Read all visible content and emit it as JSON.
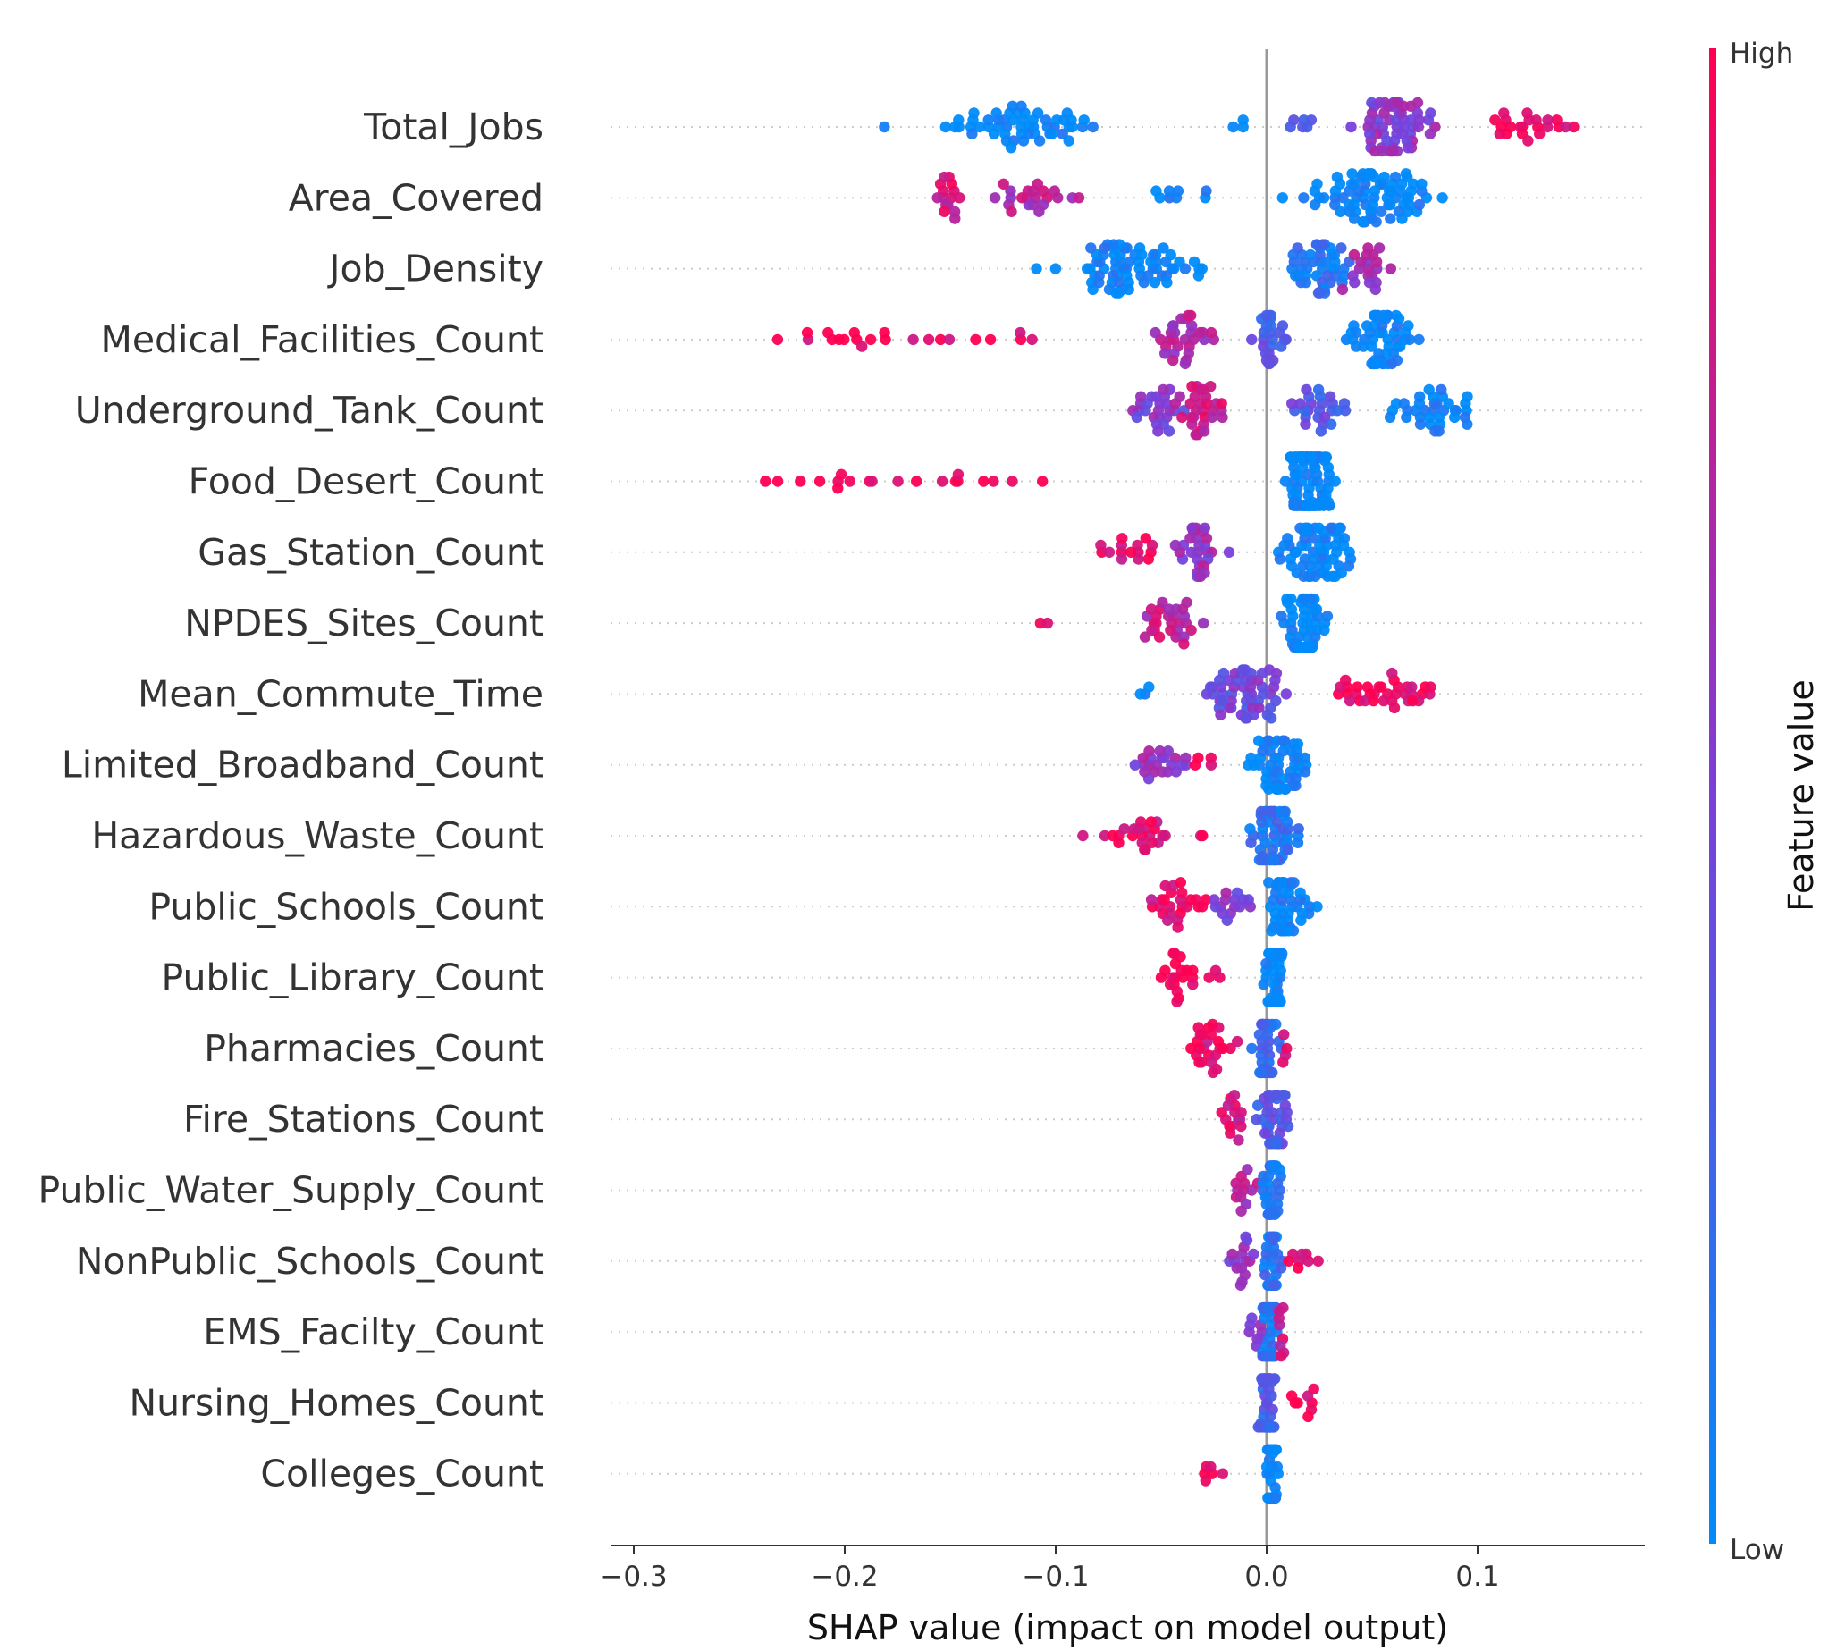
{
  "chart_data": {
    "type": "scatter",
    "subtype": "shap-beeswarm-summary",
    "xlabel": "SHAP value (impact on model output)",
    "xlim": [
      -0.315,
      0.175
    ],
    "xticks": [
      -0.3,
      -0.2,
      -0.1,
      0.0,
      0.1
    ],
    "xtick_labels": [
      "−0.3",
      "−0.2",
      "−0.1",
      "0.0",
      "0.1"
    ],
    "colorbar": {
      "title": "Feature value",
      "high_label": "High",
      "low_label": "Low",
      "low_color": "#1e88e5",
      "high_color": "#ff0d57"
    },
    "grid": "horizontal dotted per feature",
    "zero_line_color": "#999999",
    "features": [
      {
        "name": "Total_Jobs",
        "clusters": [
          {
            "min": -0.2,
            "max": -0.04,
            "n": 55,
            "fv": 0.0
          },
          {
            "min": -0.03,
            "max": 0.0,
            "n": 3,
            "fv": 0.05
          },
          {
            "min": 0.0,
            "max": 0.03,
            "n": 6,
            "fv": 0.35
          },
          {
            "min": 0.03,
            "max": 0.09,
            "n": 60,
            "fv": 0.55
          },
          {
            "min": 0.09,
            "max": 0.155,
            "n": 22,
            "fv": 0.95
          }
        ]
      },
      {
        "name": "Area_Covered",
        "clusters": [
          {
            "min": -0.16,
            "max": -0.14,
            "n": 15,
            "fv": 0.85
          },
          {
            "min": -0.14,
            "max": -0.08,
            "n": 22,
            "fv": 0.7
          },
          {
            "min": -0.08,
            "max": -0.01,
            "n": 8,
            "fv": 0.05
          },
          {
            "min": 0.0,
            "max": 0.1,
            "n": 80,
            "fv": 0.02
          }
        ]
      },
      {
        "name": "Job_Density",
        "clusters": [
          {
            "min": -0.12,
            "max": -0.01,
            "n": 70,
            "fv": 0.03
          },
          {
            "min": 0.0,
            "max": 0.05,
            "n": 45,
            "fv": 0.15
          },
          {
            "min": 0.03,
            "max": 0.068,
            "n": 20,
            "fv": 0.65
          }
        ]
      },
      {
        "name": "Medical_Facilities_Count",
        "clusters": [
          {
            "min": -0.275,
            "max": -0.08,
            "n": 22,
            "fv": 0.95
          },
          {
            "min": -0.065,
            "max": -0.015,
            "n": 30,
            "fv": 0.7
          },
          {
            "min": -0.02,
            "max": 0.02,
            "n": 25,
            "fv": 0.3
          },
          {
            "min": 0.025,
            "max": 0.08,
            "n": 55,
            "fv": 0.02
          }
        ]
      },
      {
        "name": "Underground_Tank_Count",
        "clusters": [
          {
            "min": -0.075,
            "max": -0.035,
            "n": 25,
            "fv": 0.5
          },
          {
            "min": -0.05,
            "max": -0.01,
            "n": 30,
            "fv": 0.8
          },
          {
            "min": 0.0,
            "max": 0.05,
            "n": 25,
            "fv": 0.35
          },
          {
            "min": 0.04,
            "max": 0.12,
            "n": 35,
            "fv": 0.03
          }
        ]
      },
      {
        "name": "Food_Desert_Count",
        "clusters": [
          {
            "min": -0.29,
            "max": -0.065,
            "n": 20,
            "fv": 1.0
          },
          {
            "min": 0.005,
            "max": 0.035,
            "n": 140,
            "fv": 0.0
          }
        ]
      },
      {
        "name": "Gas_Station_Count",
        "clusters": [
          {
            "min": -0.085,
            "max": -0.04,
            "n": 15,
            "fv": 0.9
          },
          {
            "min": -0.05,
            "max": -0.015,
            "n": 30,
            "fv": 0.6
          },
          {
            "min": -0.005,
            "max": 0.053,
            "n": 65,
            "fv": 0.02
          }
        ]
      },
      {
        "name": "NPDES_Sites_Count",
        "clusters": [
          {
            "min": -0.115,
            "max": -0.1,
            "n": 2,
            "fv": 1.0
          },
          {
            "min": -0.068,
            "max": -0.022,
            "n": 28,
            "fv": 0.75
          },
          {
            "min": 0.0,
            "max": 0.035,
            "n": 60,
            "fv": 0.0
          }
        ]
      },
      {
        "name": "Mean_Commute_Time",
        "clusters": [
          {
            "min": -0.065,
            "max": -0.05,
            "n": 3,
            "fv": 0.0
          },
          {
            "min": -0.04,
            "max": 0.02,
            "n": 55,
            "fv": 0.45
          },
          {
            "min": 0.01,
            "max": 0.105,
            "n": 35,
            "fv": 0.95
          }
        ]
      },
      {
        "name": "Limited_Broadband_Count",
        "clusters": [
          {
            "min": -0.07,
            "max": -0.03,
            "n": 22,
            "fv": 0.6
          },
          {
            "min": -0.04,
            "max": -0.02,
            "n": 4,
            "fv": 0.95
          },
          {
            "min": -0.015,
            "max": 0.028,
            "n": 55,
            "fv": 0.02
          }
        ]
      },
      {
        "name": "Hazardous_Waste_Count",
        "clusters": [
          {
            "min": -0.095,
            "max": -0.02,
            "n": 25,
            "fv": 0.9
          },
          {
            "min": -0.015,
            "max": 0.022,
            "n": 60,
            "fv": 0.15
          }
        ]
      },
      {
        "name": "Public_Schools_Count",
        "clusters": [
          {
            "min": -0.068,
            "max": -0.02,
            "n": 25,
            "fv": 0.9
          },
          {
            "min": -0.03,
            "max": 0.0,
            "n": 15,
            "fv": 0.55
          },
          {
            "min": -0.005,
            "max": 0.026,
            "n": 50,
            "fv": 0.05
          }
        ]
      },
      {
        "name": "Public_Library_Count",
        "clusters": [
          {
            "min": -0.062,
            "max": -0.01,
            "n": 22,
            "fv": 1.0
          },
          {
            "min": -0.003,
            "max": 0.01,
            "n": 60,
            "fv": 0.0
          }
        ]
      },
      {
        "name": "Pharmacies_Count",
        "clusters": [
          {
            "min": -0.05,
            "max": -0.005,
            "n": 25,
            "fv": 0.9
          },
          {
            "min": -0.01,
            "max": 0.008,
            "n": 35,
            "fv": 0.25
          },
          {
            "min": 0.005,
            "max": 0.013,
            "n": 4,
            "fv": 0.9
          }
        ]
      },
      {
        "name": "Fire_Stations_Count",
        "clusters": [
          {
            "min": -0.03,
            "max": -0.005,
            "n": 15,
            "fv": 0.85
          },
          {
            "min": -0.008,
            "max": 0.015,
            "n": 45,
            "fv": 0.35
          }
        ]
      },
      {
        "name": "Public_Water_Supply_Count",
        "clusters": [
          {
            "min": -0.02,
            "max": 0.0,
            "n": 12,
            "fv": 0.7
          },
          {
            "min": -0.005,
            "max": 0.01,
            "n": 45,
            "fv": 0.1
          }
        ]
      },
      {
        "name": "NonPublic_Schools_Count",
        "clusters": [
          {
            "min": -0.023,
            "max": 0.0,
            "n": 15,
            "fv": 0.55
          },
          {
            "min": -0.005,
            "max": 0.01,
            "n": 35,
            "fv": 0.15
          },
          {
            "min": 0.005,
            "max": 0.03,
            "n": 8,
            "fv": 0.95
          }
        ]
      },
      {
        "name": "EMS_Facilty_Count",
        "clusters": [
          {
            "min": -0.01,
            "max": 0.0,
            "n": 8,
            "fv": 0.6
          },
          {
            "min": -0.005,
            "max": 0.008,
            "n": 45,
            "fv": 0.15
          },
          {
            "min": 0.003,
            "max": 0.012,
            "n": 8,
            "fv": 0.8
          }
        ]
      },
      {
        "name": "Nursing_Homes_Count",
        "clusters": [
          {
            "min": -0.008,
            "max": 0.008,
            "n": 45,
            "fv": 0.3
          },
          {
            "min": 0.005,
            "max": 0.033,
            "n": 8,
            "fv": 0.95
          }
        ]
      },
      {
        "name": "Colleges_Count",
        "clusters": [
          {
            "min": -0.045,
            "max": -0.01,
            "n": 6,
            "fv": 1.0
          },
          {
            "min": -0.002,
            "max": 0.007,
            "n": 45,
            "fv": 0.0
          }
        ]
      }
    ]
  }
}
